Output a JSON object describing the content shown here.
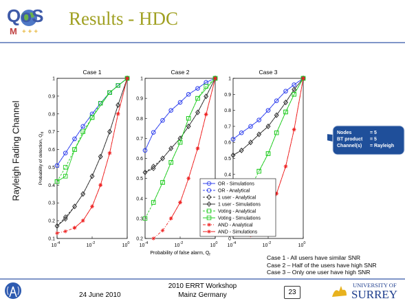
{
  "header": {
    "title": "Results - HDC",
    "logo_text": "QoS"
  },
  "side_label": "Rayleigh  Fading  Channel",
  "chart_data": {
    "type": "line",
    "xlabel": "Probability of false alarm, Q",
    "xlabel_sub": "f",
    "ylabel": "Probability of detection, Q",
    "ylabel_sub": "d",
    "xscale": "log",
    "x_ticks": [
      "10",
      "10",
      "10"
    ],
    "x_tick_exps": [
      "-4",
      "-2",
      "0"
    ],
    "legend_position": "inside lower-right of Case 2",
    "charts": [
      {
        "title": "Case 1",
        "ylim": [
          0.1,
          1
        ],
        "yticks": [
          "0.1",
          "0.2",
          "0.3",
          "0.4",
          "0.5",
          "0.6",
          "0.7",
          "0.8",
          "0.9",
          "1"
        ],
        "series": [
          {
            "name": "OR - Simulations",
            "x": [
              0.0001,
              0.0003,
              0.001,
              0.003,
              0.01,
              0.03,
              0.1,
              0.3,
              1
            ],
            "y": [
              0.51,
              0.58,
              0.66,
              0.73,
              0.8,
              0.86,
              0.92,
              0.96,
              1
            ]
          },
          {
            "name": "OR - Analytical",
            "x": [
              0.0001,
              0.0003,
              0.001,
              0.003,
              0.01,
              0.03,
              0.1,
              0.3,
              1
            ],
            "y": [
              0.51,
              0.58,
              0.66,
              0.73,
              0.8,
              0.86,
              0.92,
              0.96,
              1
            ]
          },
          {
            "name": "1 user - Analytical",
            "x": [
              0.0001,
              0.0003,
              0.001,
              0.003,
              0.01,
              0.03,
              0.1,
              0.3,
              1
            ],
            "y": [
              0.17,
              0.22,
              0.28,
              0.35,
              0.45,
              0.56,
              0.7,
              0.85,
              1
            ]
          },
          {
            "name": "1 user - Simulations",
            "x": [
              0.0001,
              0.0003,
              0.001,
              0.003,
              0.01,
              0.03,
              0.1,
              0.3,
              1
            ],
            "y": [
              0.17,
              0.21,
              0.28,
              0.35,
              0.45,
              0.56,
              0.7,
              0.85,
              1
            ]
          },
          {
            "name": "Voting - Analytical",
            "x": [
              0.0001,
              0.0003,
              0.001,
              0.003,
              0.01,
              0.03,
              0.1,
              0.3,
              1
            ],
            "y": [
              0.42,
              0.5,
              0.6,
              0.7,
              0.78,
              0.86,
              0.92,
              0.96,
              1
            ]
          },
          {
            "name": "Voting - Simulations",
            "x": [
              0.0001,
              0.0003,
              0.001,
              0.01,
              0.1,
              1
            ],
            "y": [
              0.42,
              0.45,
              0.6,
              0.78,
              0.92,
              1
            ]
          },
          {
            "name": "AND - Analytical",
            "x": [
              0.0001,
              0.0003,
              0.001,
              0.003,
              0.01,
              0.03,
              0.1,
              0.3,
              1
            ],
            "y": [
              0.13,
              0.14,
              0.16,
              0.2,
              0.28,
              0.4,
              0.58,
              0.8,
              1
            ]
          },
          {
            "name": "AND - Simulations",
            "x": [
              0.001,
              0.003,
              0.01,
              0.03,
              0.1,
              0.3,
              1
            ],
            "y": [
              0.16,
              0.2,
              0.28,
              0.4,
              0.58,
              0.8,
              1
            ]
          }
        ]
      },
      {
        "title": "Case 2",
        "ylim": [
          0.2,
          1
        ],
        "yticks": [
          "0.2",
          "0.3",
          "0.4",
          "0.5",
          "0.6",
          "0.7",
          "0.8",
          "0.9",
          "1"
        ],
        "series": [
          {
            "name": "OR - Simulations",
            "x": [
              0.0001,
              0.0003,
              0.001,
              0.003,
              0.01,
              0.03,
              0.1,
              0.3,
              1
            ],
            "y": [
              0.64,
              0.73,
              0.79,
              0.84,
              0.88,
              0.92,
              0.95,
              0.98,
              1
            ]
          },
          {
            "name": "OR - Analytical",
            "x": [
              0.0001,
              0.0003,
              0.001,
              0.003,
              0.01,
              0.03,
              0.1,
              0.3,
              1
            ],
            "y": [
              0.64,
              0.73,
              0.79,
              0.84,
              0.88,
              0.92,
              0.95,
              0.98,
              1
            ]
          },
          {
            "name": "1 user - Analytical",
            "x": [
              0.0001,
              0.0003,
              0.001,
              0.003,
              0.01,
              0.03,
              0.1,
              0.3,
              1
            ],
            "y": [
              0.53,
              0.56,
              0.6,
              0.65,
              0.7,
              0.76,
              0.83,
              0.91,
              1
            ]
          },
          {
            "name": "1 user - Simulations",
            "x": [
              0.0001,
              0.0003,
              0.001,
              0.003,
              0.01,
              0.03,
              0.1,
              0.3,
              1
            ],
            "y": [
              0.53,
              0.55,
              0.6,
              0.65,
              0.7,
              0.76,
              0.83,
              0.91,
              1
            ]
          },
          {
            "name": "Voting - Analytical",
            "x": [
              0.0001,
              0.0003,
              0.001,
              0.003,
              0.01,
              0.03,
              0.1,
              0.3,
              1
            ],
            "y": [
              0.3,
              0.38,
              0.48,
              0.58,
              0.68,
              0.8,
              0.9,
              0.96,
              1
            ]
          },
          {
            "name": "Voting - Simulations",
            "x": [
              0.0003,
              0.001,
              0.003,
              0.01,
              0.03,
              0.1,
              1
            ],
            "y": [
              0.38,
              0.48,
              0.58,
              0.68,
              0.8,
              0.9,
              1
            ]
          },
          {
            "name": "AND - Analytical",
            "x": [
              0.0003,
              0.001,
              0.003,
              0.01,
              0.03,
              0.1,
              0.3,
              1
            ],
            "y": [
              0.2,
              0.24,
              0.3,
              0.38,
              0.5,
              0.65,
              0.82,
              1
            ]
          },
          {
            "name": "AND - Simulations",
            "x": [
              0.003,
              0.01,
              0.03,
              0.1,
              0.3,
              1
            ],
            "y": [
              0.3,
              0.38,
              0.5,
              0.65,
              0.82,
              1
            ]
          }
        ]
      },
      {
        "title": "Case 3",
        "ylim": [
          0,
          1
        ],
        "yticks": [
          "0",
          "0.1",
          "0.2",
          "0.3",
          "0.4",
          "0.5",
          "0.6",
          "0.7",
          "0.8",
          "0.9",
          "1"
        ],
        "series": [
          {
            "name": "OR - Simulations",
            "x": [
              0.0001,
              0.0003,
              0.001,
              0.003,
              0.01,
              0.03,
              0.1,
              0.3,
              1
            ],
            "y": [
              0.62,
              0.66,
              0.7,
              0.74,
              0.8,
              0.86,
              0.92,
              0.96,
              1
            ]
          },
          {
            "name": "OR - Analytical",
            "x": [
              0.0001,
              0.0003,
              0.001,
              0.003,
              0.01,
              0.03,
              0.1,
              0.3,
              1
            ],
            "y": [
              0.62,
              0.66,
              0.7,
              0.74,
              0.8,
              0.86,
              0.92,
              0.96,
              1
            ]
          },
          {
            "name": "1 user - Analytical",
            "x": [
              0.0001,
              0.0003,
              0.001,
              0.003,
              0.01,
              0.03,
              0.1,
              0.3,
              1
            ],
            "y": [
              0.52,
              0.55,
              0.6,
              0.65,
              0.7,
              0.77,
              0.85,
              0.93,
              1
            ]
          },
          {
            "name": "1 user - Simulations",
            "x": [
              0.0001,
              0.0003,
              0.001,
              0.003,
              0.01,
              0.03,
              0.1,
              0.3,
              1
            ],
            "y": [
              0.52,
              0.55,
              0.6,
              0.65,
              0.7,
              0.77,
              0.85,
              0.93,
              1
            ]
          },
          {
            "name": "Voting - Analytical",
            "x": [
              0.001,
              0.003,
              0.01,
              0.03,
              0.1,
              0.3,
              1
            ],
            "y": [
              0.32,
              0.42,
              0.53,
              0.66,
              0.79,
              0.9,
              1
            ]
          },
          {
            "name": "Voting - Simulations",
            "x": [
              0.003,
              0.01,
              0.03,
              0.1,
              0.3,
              1
            ],
            "y": [
              0.42,
              0.53,
              0.66,
              0.79,
              0.9,
              1
            ]
          },
          {
            "name": "AND - Analytical",
            "x": [
              0.001,
              0.003,
              0.01,
              0.03,
              0.1,
              0.3,
              1
            ],
            "y": [
              0.02,
              0.06,
              0.14,
              0.28,
              0.45,
              0.68,
              1
            ]
          },
          {
            "name": "AND - Simulations",
            "x": [
              0.01,
              0.03,
              0.1,
              0.3,
              1
            ],
            "y": [
              0.14,
              0.28,
              0.45,
              0.68,
              1
            ]
          }
        ]
      }
    ],
    "styles": [
      {
        "name": "OR - Simulations",
        "color": "#3344ee",
        "dash": "",
        "marker": "circle"
      },
      {
        "name": "OR - Analytical",
        "color": "#3344ee",
        "dash": "3,2",
        "marker": "circle"
      },
      {
        "name": "1 user - Analytical",
        "color": "#333333",
        "dash": "3,2",
        "marker": "diamond"
      },
      {
        "name": "1 user - Simulations",
        "color": "#333333",
        "dash": "",
        "marker": "diamond"
      },
      {
        "name": "Voting - Analytical",
        "color": "#22cc22",
        "dash": "3,2",
        "marker": "square"
      },
      {
        "name": "Voting - Simulations",
        "color": "#22cc22",
        "dash": "",
        "marker": "square"
      },
      {
        "name": "AND - Analytical",
        "color": "#ee2222",
        "dash": "4,2,1,2",
        "marker": "star"
      },
      {
        "name": "AND - Simulations",
        "color": "#ee2222",
        "dash": "",
        "marker": "star"
      }
    ]
  },
  "callout": {
    "lines": [
      [
        "Nodes",
        "= 5"
      ],
      [
        "BT product",
        "= 5"
      ],
      [
        "Channel(s)",
        "= Rayleigh"
      ]
    ]
  },
  "notes": [
    "Case 1  - All users have similar SNR",
    "Case 2 – Half of the users have high SNR",
    "Case 3 – Only one user have high SNR"
  ],
  "footer": {
    "date": "24 June 2010",
    "workshop": "2010 ERRT Workshop",
    "location": "Mainz Germany",
    "page": "23",
    "university_top": "UNIVERSITY OF",
    "university_name": "SURREY"
  }
}
